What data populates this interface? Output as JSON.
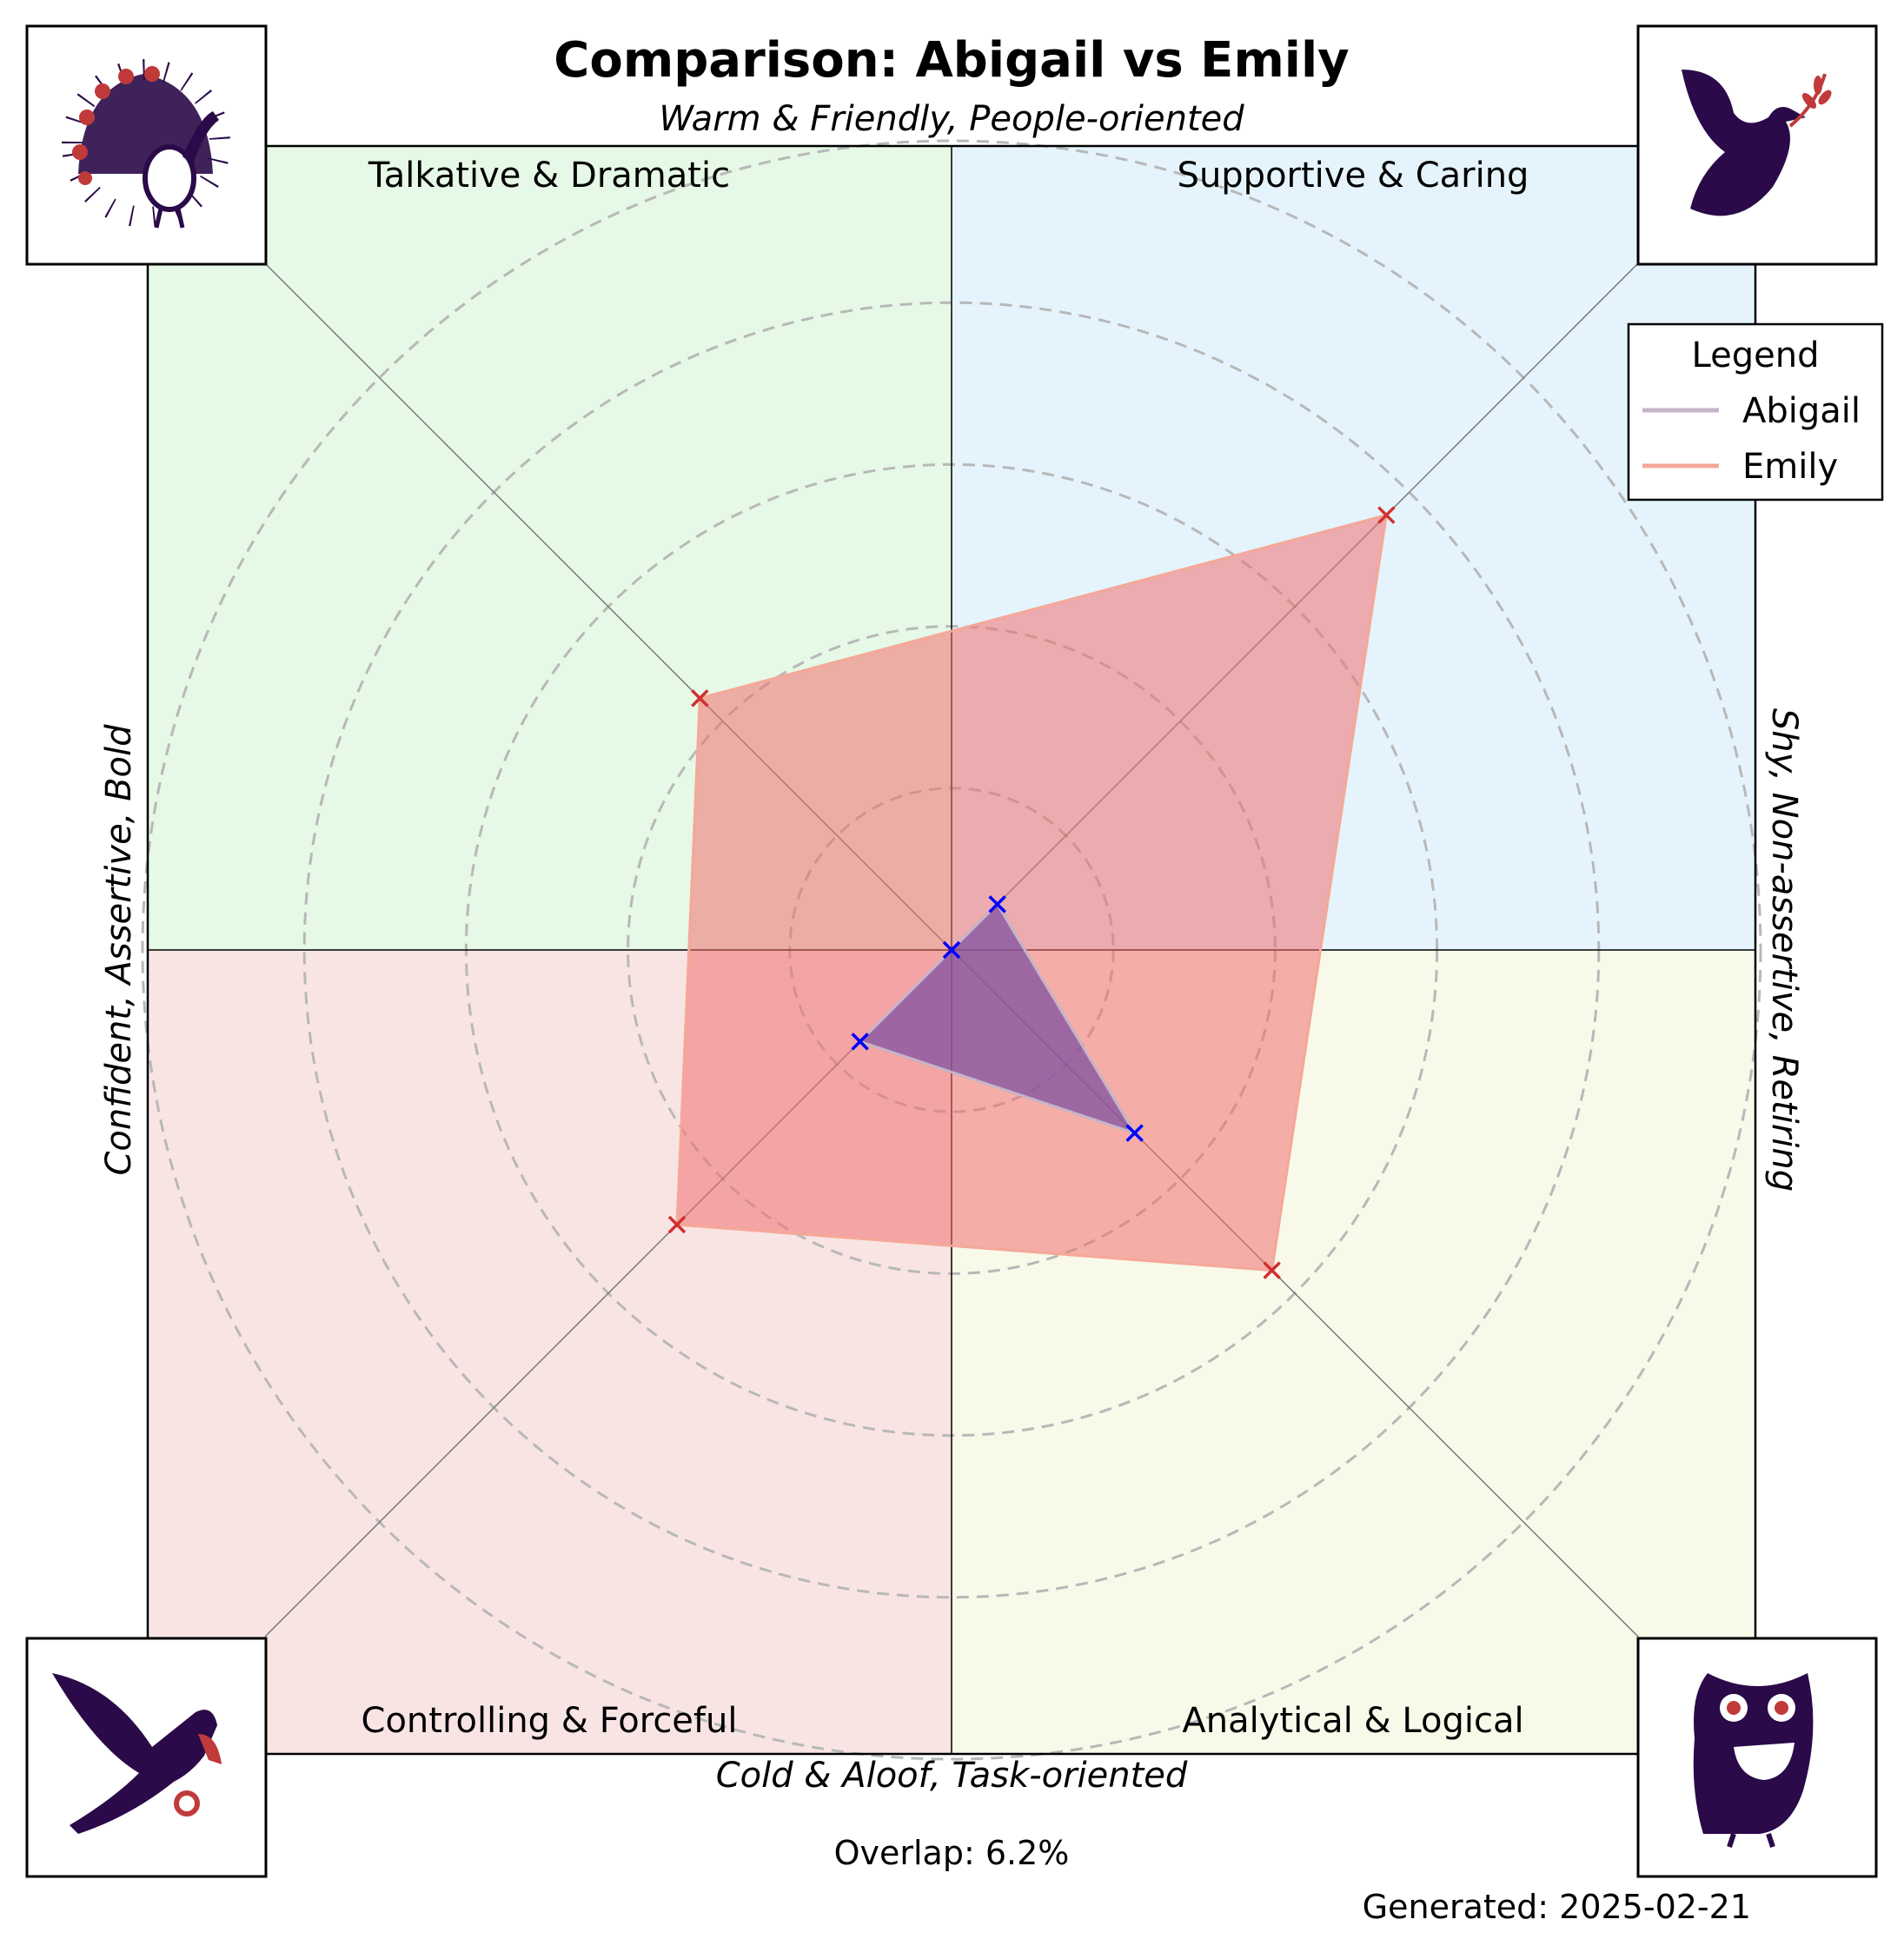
{
  "chart_data": {
    "type": "radar",
    "title": "Comparison: Abigail vs Emily",
    "axis_labels": {
      "top": "Warm & Friendly, People-oriented",
      "bottom": "Cold & Aloof, Task-oriented",
      "left": "Confident, Assertive, Bold",
      "right": "Shy, Non-assertive, Retiring"
    },
    "quadrants": [
      {
        "name": "Talkative & Dramatic",
        "color": "#e6f8e6",
        "icon": "peacock-icon"
      },
      {
        "name": "Supportive & Caring",
        "color": "#e5f4fc",
        "icon": "dove-icon"
      },
      {
        "name": "Controlling & Forceful",
        "color": "#f9e4e4",
        "icon": "eagle-icon"
      },
      {
        "name": "Analytical & Logical",
        "color": "#f9f9ea",
        "icon": "owl-icon"
      }
    ],
    "axes_order": [
      "Talkative & Dramatic",
      "Supportive & Caring",
      "Analytical & Logical",
      "Controlling & Forceful"
    ],
    "rmax": 10,
    "ring_step": 2,
    "grid": true,
    "series": [
      {
        "name": "Abigail",
        "values": [
          0,
          0.8,
          3.2,
          1.6
        ],
        "line_color": "#c4b4c8",
        "fill_color": "#8050a0",
        "marker_color": "#0000ff"
      },
      {
        "name": "Emily",
        "values": [
          4.4,
          7.6,
          5.6,
          4.8
        ],
        "line_color": "#f5a898",
        "fill_color": "#f07070",
        "marker_color": "#d03030"
      }
    ],
    "legend": {
      "title": "Legend",
      "position": "top-right"
    },
    "overlap": "Overlap: 6.2%",
    "generated": "Generated: 2025-02-21"
  }
}
